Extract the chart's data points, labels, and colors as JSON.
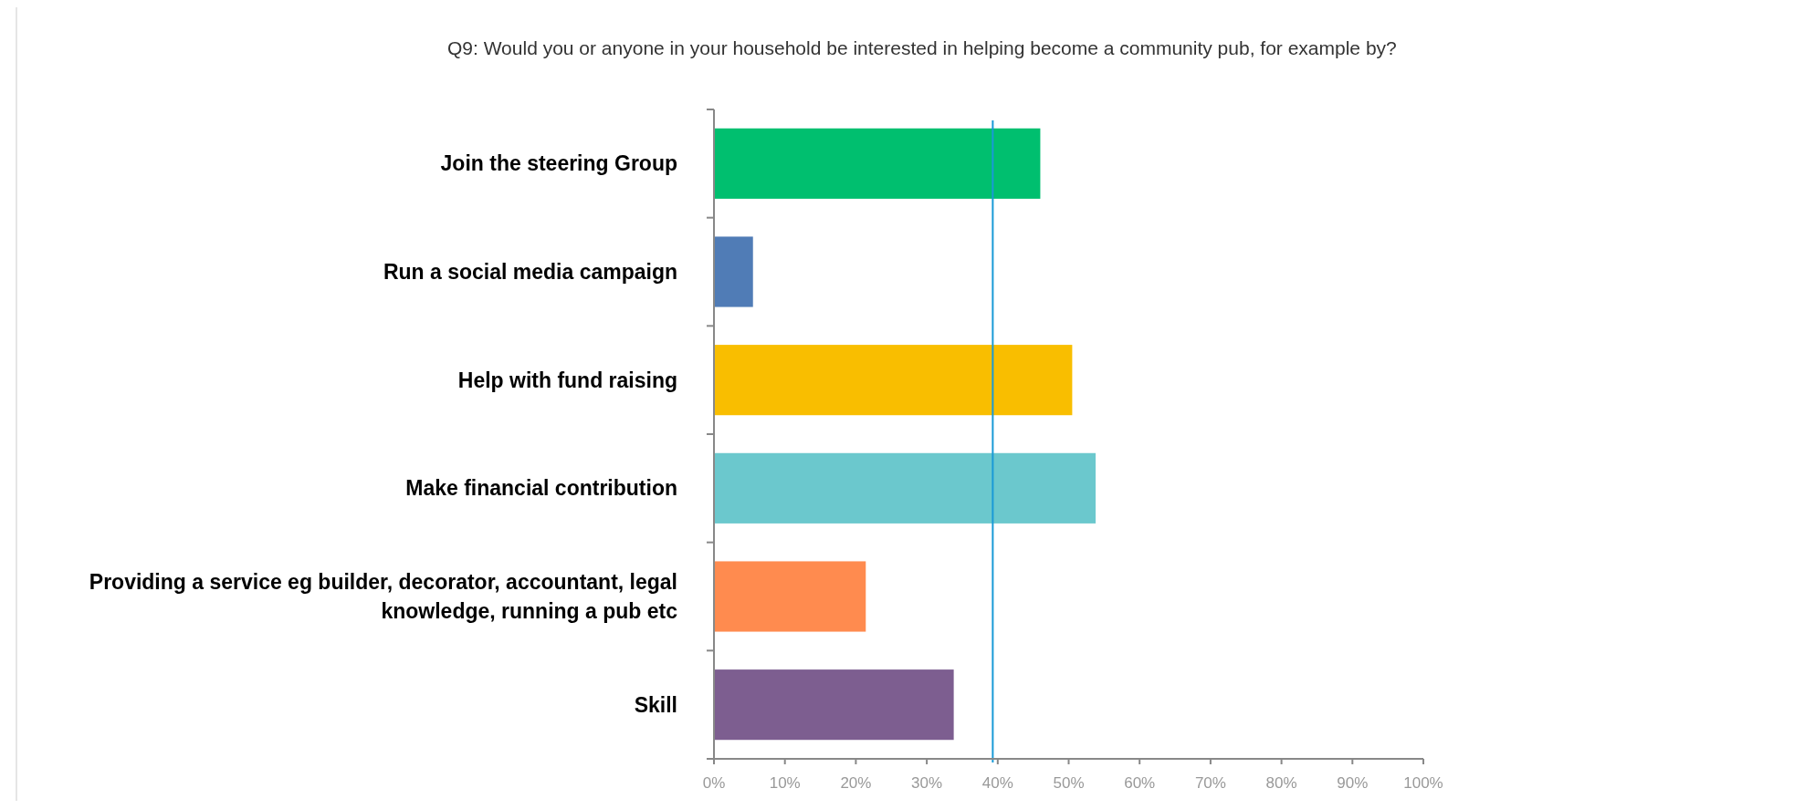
{
  "chart_data": {
    "type": "bar",
    "orientation": "horizontal",
    "title": "Q9: Would you or anyone in your household be interested in helping become a community pub, for example by?",
    "categories": [
      "Join the steering Group",
      "Run a social media campaign",
      "Help with fund raising",
      "Make financial contribution",
      "Providing a service eg builder, decorator, accountant, legal knowledge, running a pub etc",
      "Skill"
    ],
    "values": [
      46.0,
      5.5,
      50.5,
      53.8,
      21.4,
      33.8
    ],
    "colors": [
      "#00bf6f",
      "#507cb6",
      "#f9be00",
      "#6bc8cd",
      "#ff8b4f",
      "#7d5e90"
    ],
    "xlim": [
      0,
      100
    ],
    "xticks": [
      {
        "value": 0,
        "label": "0%"
      },
      {
        "value": 10,
        "label": "10%"
      },
      {
        "value": 20,
        "label": "20%"
      },
      {
        "value": 30,
        "label": "30%"
      },
      {
        "value": 40,
        "label": "40%"
      },
      {
        "value": 50,
        "label": "50%"
      },
      {
        "value": 60,
        "label": "60%"
      },
      {
        "value": 70,
        "label": "70%"
      },
      {
        "value": 80,
        "label": "80%"
      },
      {
        "value": 90,
        "label": "90%"
      },
      {
        "value": 100,
        "label": "100%"
      }
    ],
    "ref_lines": [
      {
        "axis": "x",
        "value": 39.3,
        "color": "#1a9ad6"
      }
    ],
    "grid": false
  }
}
